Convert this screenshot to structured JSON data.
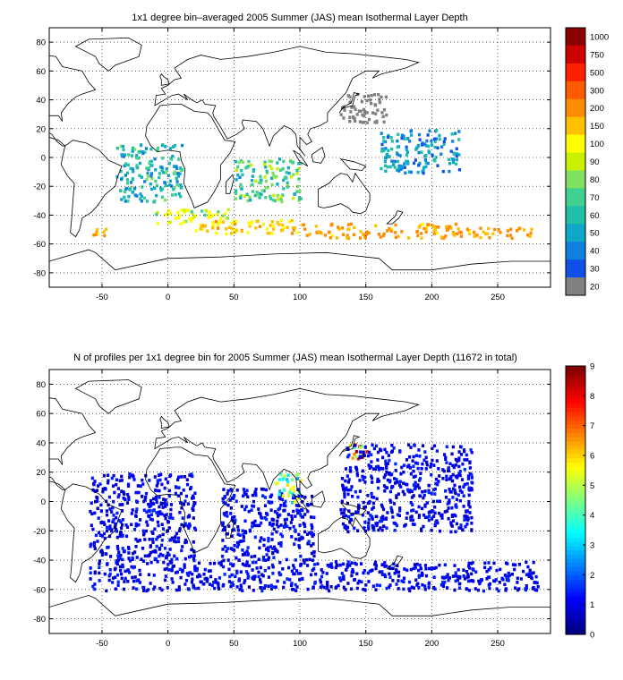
{
  "maps": [
    {
      "id": "ild",
      "title": "1x1 degree bin–averaged 2005 Summer (JAS) mean Isothermal Layer Depth",
      "x_ticks": [
        "-50",
        "0",
        "50",
        "100",
        "150",
        "200",
        "250"
      ],
      "y_ticks": [
        "80",
        "60",
        "40",
        "20",
        "0",
        "-20",
        "-40",
        "-60",
        "-80"
      ],
      "colorbar": {
        "type": "discrete",
        "labels": [
          "1000",
          "750",
          "500",
          "300",
          "200",
          "150",
          "100",
          "90",
          "80",
          "70",
          "60",
          "50",
          "40",
          "30",
          "20"
        ],
        "colors": [
          "#8b0000",
          "#cc0000",
          "#ff2000",
          "#ff5a00",
          "#ff8c00",
          "#ffc000",
          "#ffff00",
          "#c8f000",
          "#80e060",
          "#40d090",
          "#20c0a8",
          "#10a8c8",
          "#1080e0",
          "#1050e8",
          "#808080"
        ]
      }
    },
    {
      "id": "count",
      "title": "N of profiles per 1x1 degree bin for 2005 Summer (JAS) mean Isothermal Layer Depth  (11672 in total)",
      "x_ticks": [
        "-50",
        "0",
        "50",
        "100",
        "150",
        "200",
        "250"
      ],
      "y_ticks": [
        "80",
        "60",
        "40",
        "20",
        "0",
        "-20",
        "-40",
        "-60",
        "-80"
      ],
      "colorbar": {
        "type": "continuous",
        "labels": [
          "9",
          "8",
          "7",
          "6",
          "5",
          "4",
          "3",
          "2",
          "1",
          "0"
        ],
        "colormap": "jet"
      }
    }
  ],
  "chart_data": [
    {
      "type": "heatmap",
      "title": "1x1 degree bin–averaged 2005 Summer (JAS) mean Isothermal Layer Depth",
      "xlim": [
        -90,
        290
      ],
      "ylim": [
        -90,
        90
      ],
      "grid": true,
      "colorbar_levels": [
        20,
        30,
        40,
        50,
        60,
        70,
        80,
        90,
        100,
        150,
        200,
        300,
        500,
        750,
        1000
      ],
      "regions": [
        {
          "lon": [
            -10,
            50
          ],
          "lat": [
            -45,
            -35
          ],
          "value": 100
        },
        {
          "lon": [
            20,
            60
          ],
          "lat": [
            -52,
            -42
          ],
          "value": 150
        },
        {
          "lon": [
            -60,
            -45
          ],
          "lat": [
            -54,
            -48
          ],
          "value": 200
        },
        {
          "lon": [
            60,
            100
          ],
          "lat": [
            -52,
            -42
          ],
          "value": 150
        },
        {
          "lon": [
            100,
            150
          ],
          "lat": [
            -55,
            -45
          ],
          "value": 200
        },
        {
          "lon": [
            150,
            220
          ],
          "lat": [
            -55,
            -45
          ],
          "value": 200
        },
        {
          "lon": [
            220,
            280
          ],
          "lat": [
            -55,
            -48
          ],
          "value": 200
        },
        {
          "lon": [
            130,
            165
          ],
          "lat": [
            25,
            45
          ],
          "value": 20
        },
        {
          "lon": [
            160,
            220
          ],
          "lat": [
            -10,
            20
          ],
          "value": 50
        },
        {
          "lon": [
            -40,
            10
          ],
          "lat": [
            -30,
            10
          ],
          "value": 60
        },
        {
          "lon": [
            50,
            100
          ],
          "lat": [
            -30,
            0
          ],
          "value": 70
        }
      ]
    },
    {
      "type": "heatmap",
      "title": "N of profiles per 1x1 degree bin for 2005 Summer (JAS) mean Isothermal Layer Depth  (11672 in total)",
      "xlim": [
        -90,
        290
      ],
      "ylim": [
        -90,
        90
      ],
      "grid": true,
      "colorbar_range": [
        0,
        9
      ],
      "total_profiles": 11672,
      "regions": [
        {
          "lon": [
            135,
            150
          ],
          "lat": [
            28,
            42
          ],
          "value": 7
        },
        {
          "lon": [
            -60,
            280
          ],
          "lat": [
            -60,
            -40
          ],
          "value": 1
        },
        {
          "lon": [
            130,
            230
          ],
          "lat": [
            -20,
            40
          ],
          "value": 1
        },
        {
          "lon": [
            -60,
            20
          ],
          "lat": [
            -40,
            20
          ],
          "value": 1
        },
        {
          "lon": [
            40,
            110
          ],
          "lat": [
            -40,
            10
          ],
          "value": 1
        },
        {
          "lon": [
            80,
            100
          ],
          "lat": [
            0,
            20
          ],
          "value": 4
        }
      ]
    }
  ]
}
